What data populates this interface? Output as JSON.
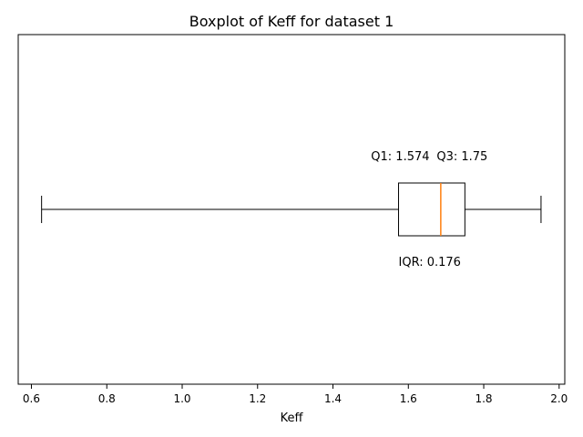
{
  "chart_data": {
    "type": "boxplot",
    "orientation": "horizontal",
    "title": "Boxplot of Keff for dataset 1",
    "xlabel": "Keff",
    "ylabel": "",
    "xlim": [
      0.565,
      2.015
    ],
    "xticks": [
      0.6,
      0.8,
      1.0,
      1.2,
      1.4,
      1.6,
      1.8,
      2.0
    ],
    "xtick_labels": [
      "0.6",
      "0.8",
      "1.0",
      "1.2",
      "1.4",
      "1.6",
      "1.8",
      "2.0"
    ],
    "grid": false,
    "box": {
      "whisker_low": 0.627,
      "q1": 1.574,
      "median": 1.686,
      "q3": 1.75,
      "whisker_high": 1.952
    },
    "annotations": {
      "q1_label": "Q1: 1.574",
      "q3_label": "Q3: 1.75",
      "iqr_label": "IQR: 0.176"
    },
    "colors": {
      "box": "#000000",
      "median": "#ff7f0e",
      "axes": "#000000"
    }
  }
}
